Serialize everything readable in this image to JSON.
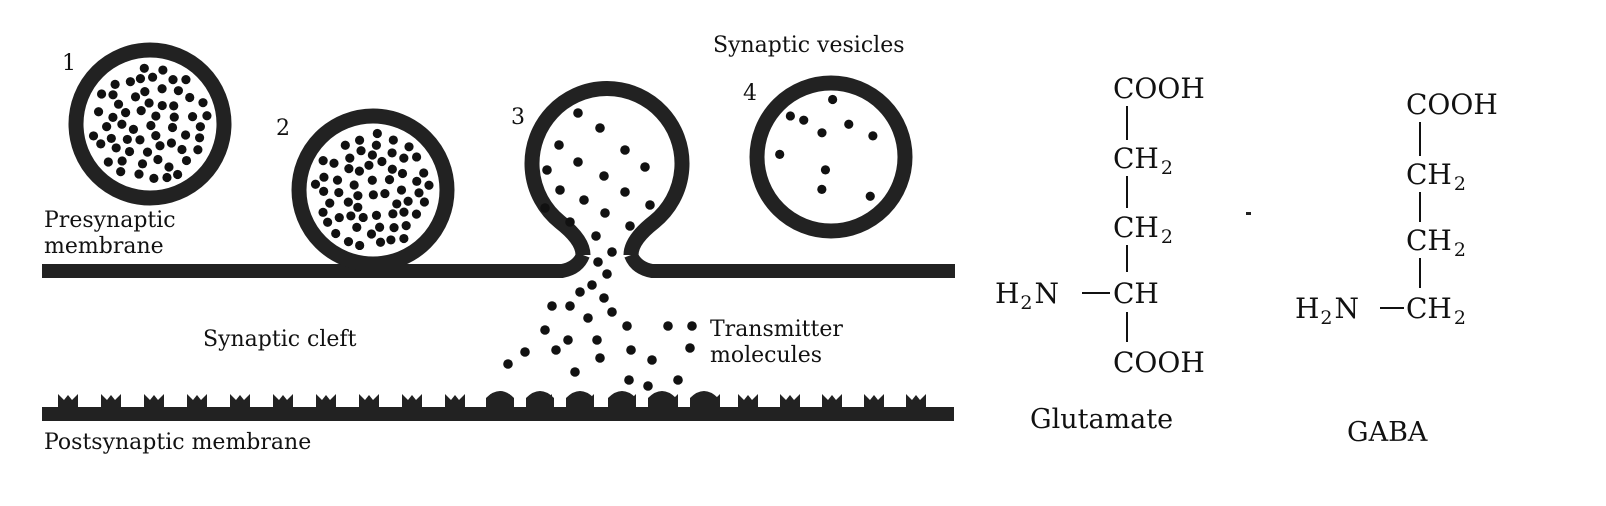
{
  "synapse": {
    "labels": {
      "presynaptic_line1": "Presynaptic",
      "presynaptic_line2": "membrane",
      "synaptic_cleft": "Synaptic cleft",
      "synaptic_vesicles": "Synaptic vesicles",
      "transmitter_line1": "Transmitter",
      "transmitter_line2": "molecules",
      "postsynaptic": "Postsynaptic membrane"
    },
    "vesicles": [
      {
        "number": "1",
        "stage": "full vesicle"
      },
      {
        "number": "2",
        "stage": "docked vesicle"
      },
      {
        "number": "3",
        "stage": "fusing vesicle releasing transmitter"
      },
      {
        "number": "4",
        "stage": "partially empty vesicle"
      }
    ]
  },
  "molecules": {
    "glutamate": {
      "name": "Glutamate",
      "top_group": "COOH",
      "ch2": "CH",
      "sub2": "2",
      "amine_h": "H",
      "amine_n": "N",
      "ch": "CH",
      "bottom_group": "COOH"
    },
    "gaba": {
      "name": "GABA",
      "top_group": "COOH",
      "ch2": "CH",
      "sub2": "2",
      "amine_h": "H",
      "amine_n": "N"
    }
  }
}
